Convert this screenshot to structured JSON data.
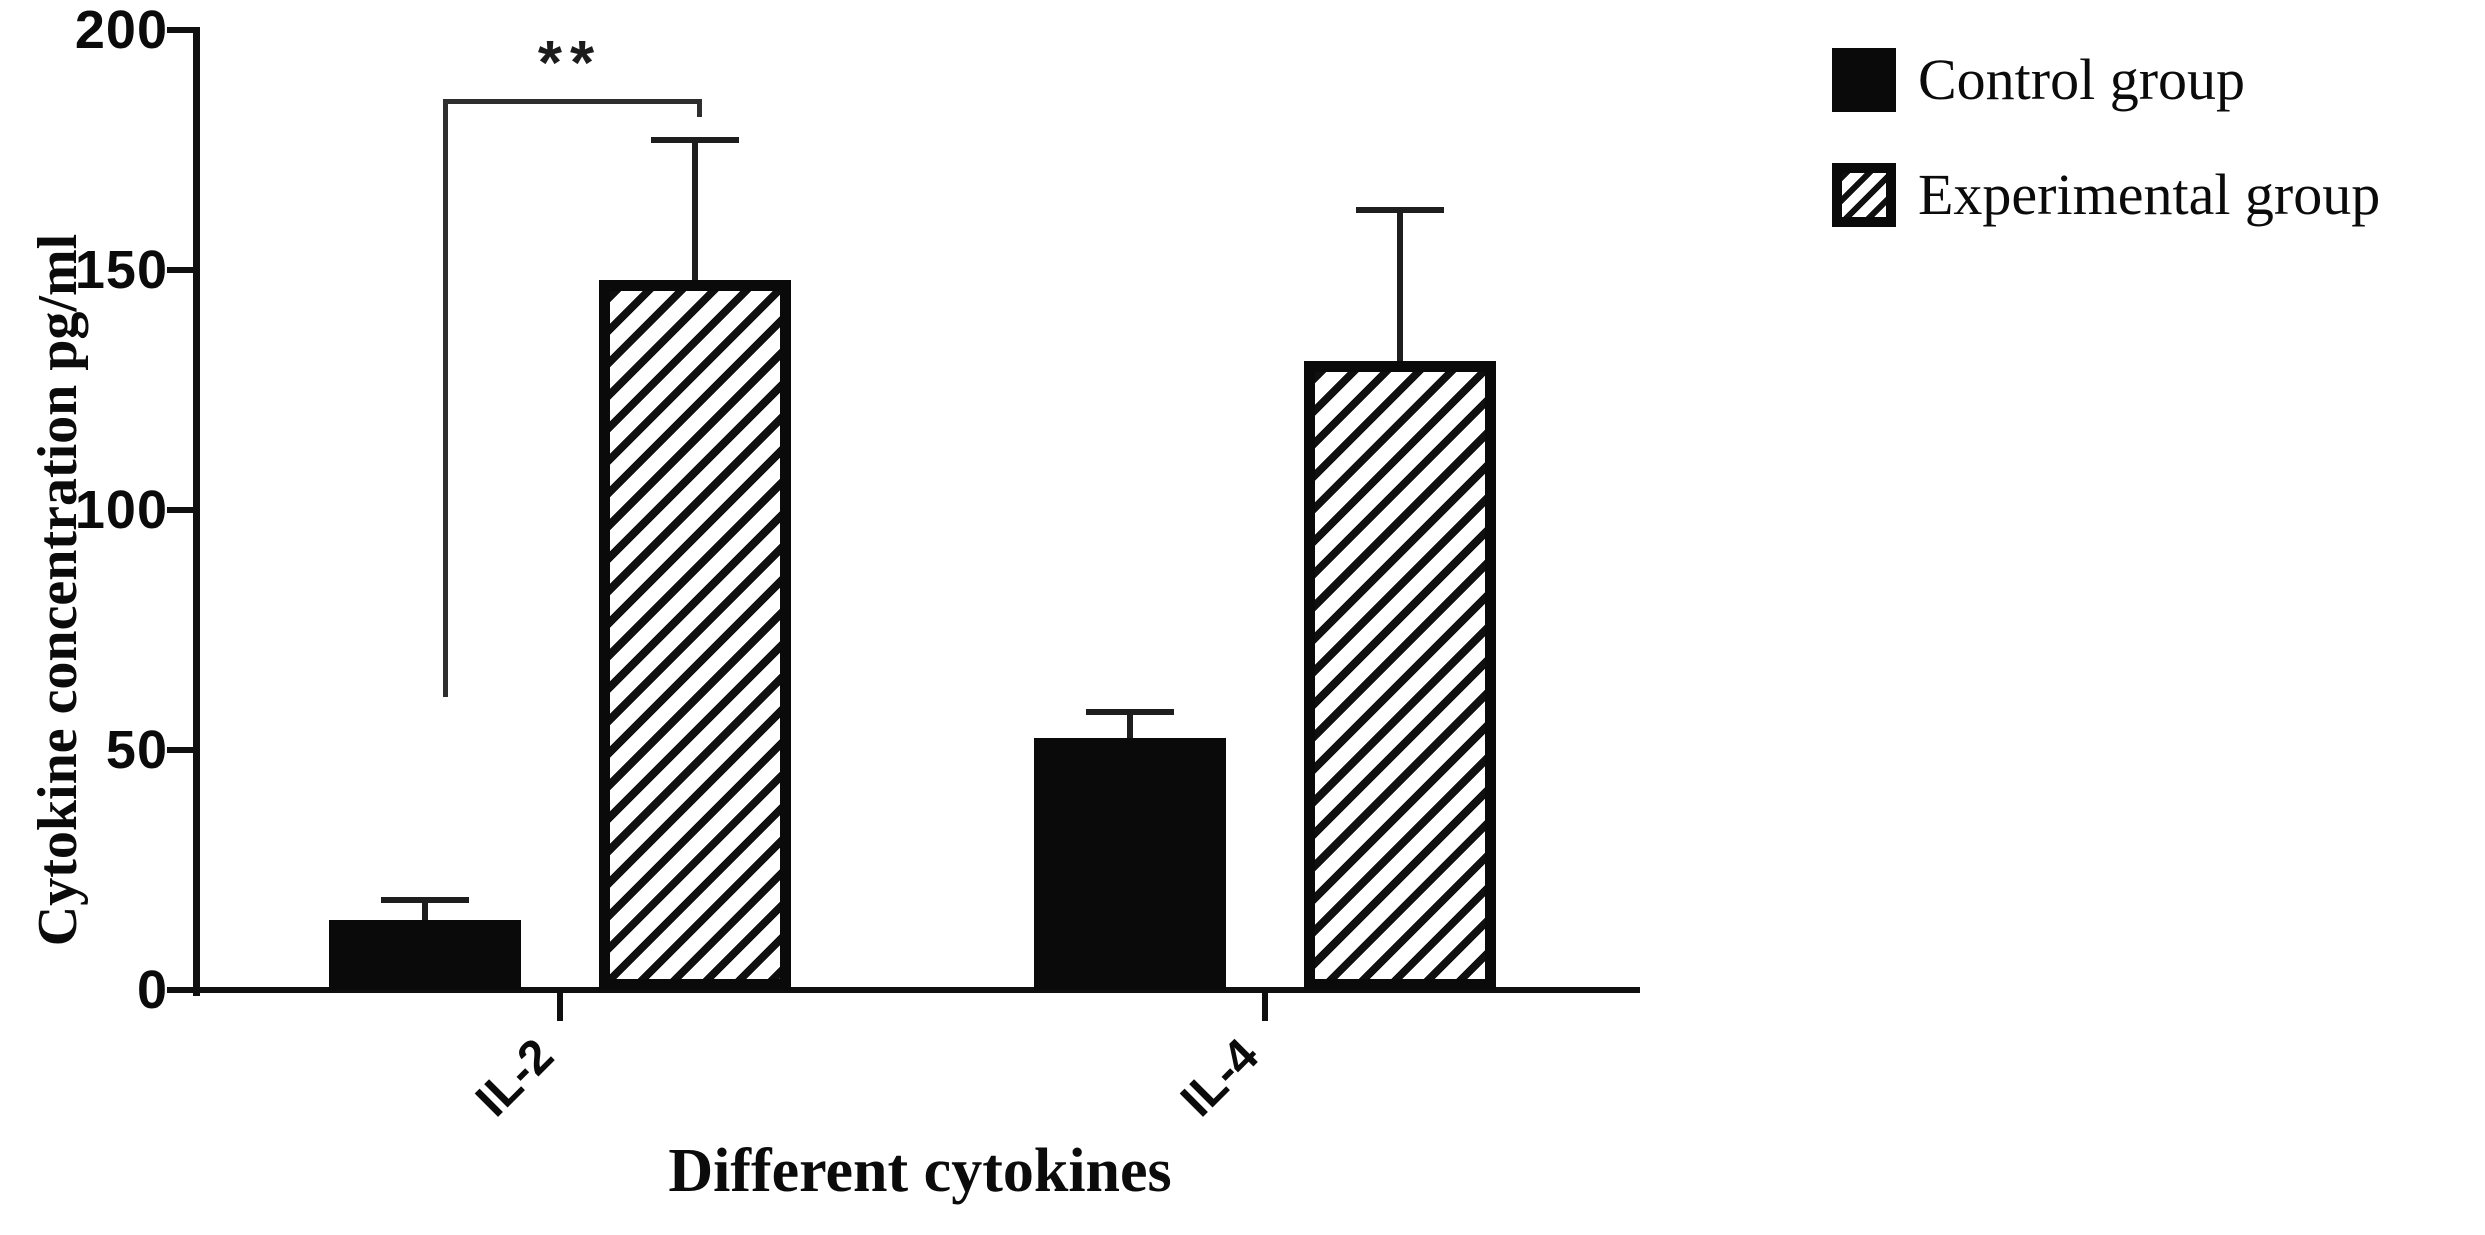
{
  "figure": {
    "background": "#ffffff",
    "ink_color": "#0a0a0a"
  },
  "chart_data": {
    "type": "bar",
    "title": "",
    "xlabel": "Different cytokines",
    "ylabel": "Cytokine concentration pg/ml",
    "categories": [
      "IL-2",
      "IL-4"
    ],
    "series": [
      {
        "name": "Control group",
        "fill": "solid-black",
        "values": [
          14.5,
          52.5
        ],
        "errors_upper": [
          4.3,
          5.5
        ]
      },
      {
        "name": "Experimental group",
        "fill": "diagonal-hatch",
        "values": [
          148,
          131
        ],
        "errors_upper": [
          29,
          31.5
        ]
      }
    ],
    "ylim": [
      0,
      200
    ],
    "y_ticks": [
      0,
      50,
      100,
      150,
      200
    ],
    "grid": false,
    "legend_position": "top-right",
    "annotations": [
      {
        "type": "significance-bracket",
        "label": "**",
        "category": "IL-2",
        "between": [
          "Control group",
          "Experimental group"
        ]
      }
    ]
  },
  "legend": {
    "items": [
      {
        "label": "Control group",
        "swatch": "solid-black"
      },
      {
        "label": "Experimental group",
        "swatch": "diagonal-hatch"
      }
    ]
  }
}
